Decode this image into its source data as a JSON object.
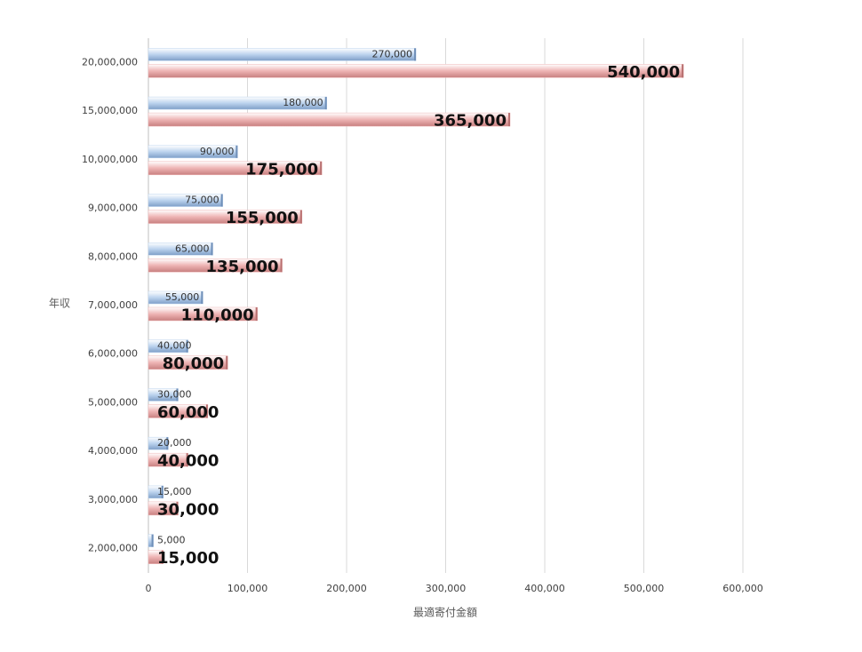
{
  "chart_data": {
    "type": "hbar",
    "x_label": "最適寄付金額",
    "y_label": "年収",
    "categories": [
      "20,000,000",
      "15,000,000",
      "10,000,000",
      "9,000,000",
      "8,000,000",
      "7,000,000",
      "6,000,000",
      "5,000,000",
      "4,000,000",
      "3,000,000",
      "2,000,000"
    ],
    "series": [
      {
        "color": "#bcd3ee",
        "values": [
          270000,
          180000,
          90000,
          75000,
          65000,
          55000,
          40000,
          30000,
          20000,
          15000,
          5000
        ],
        "value_labels": [
          "270,000",
          "180,000",
          "90,000",
          "75,000",
          "65,000",
          "55,000",
          "40,000",
          "30,000",
          "20,000",
          "15,000",
          "5,000"
        ]
      },
      {
        "color": "#eeb4b4",
        "values": [
          540000,
          365000,
          175000,
          155000,
          135000,
          110000,
          80000,
          60000,
          40000,
          30000,
          15000
        ],
        "value_labels": [
          "540,000",
          "365,000",
          "175,000",
          "155,000",
          "135,000",
          "110,000",
          "80,000",
          "60,000",
          "40,000",
          "30,000",
          "15,000"
        ]
      }
    ],
    "xlim": [
      0,
      600000
    ],
    "xticks": [
      0,
      {
        "value": 100000,
        "label": "100,000"
      },
      {
        "value": 200000,
        "label": "200,000"
      },
      {
        "value": 300000,
        "label": "300,000"
      },
      {
        "value": 400000,
        "label": "400,000"
      },
      {
        "value": 500000,
        "label": "500,000"
      },
      {
        "value": 600000,
        "label": "600,000"
      }
    ],
    "grid": true
  }
}
